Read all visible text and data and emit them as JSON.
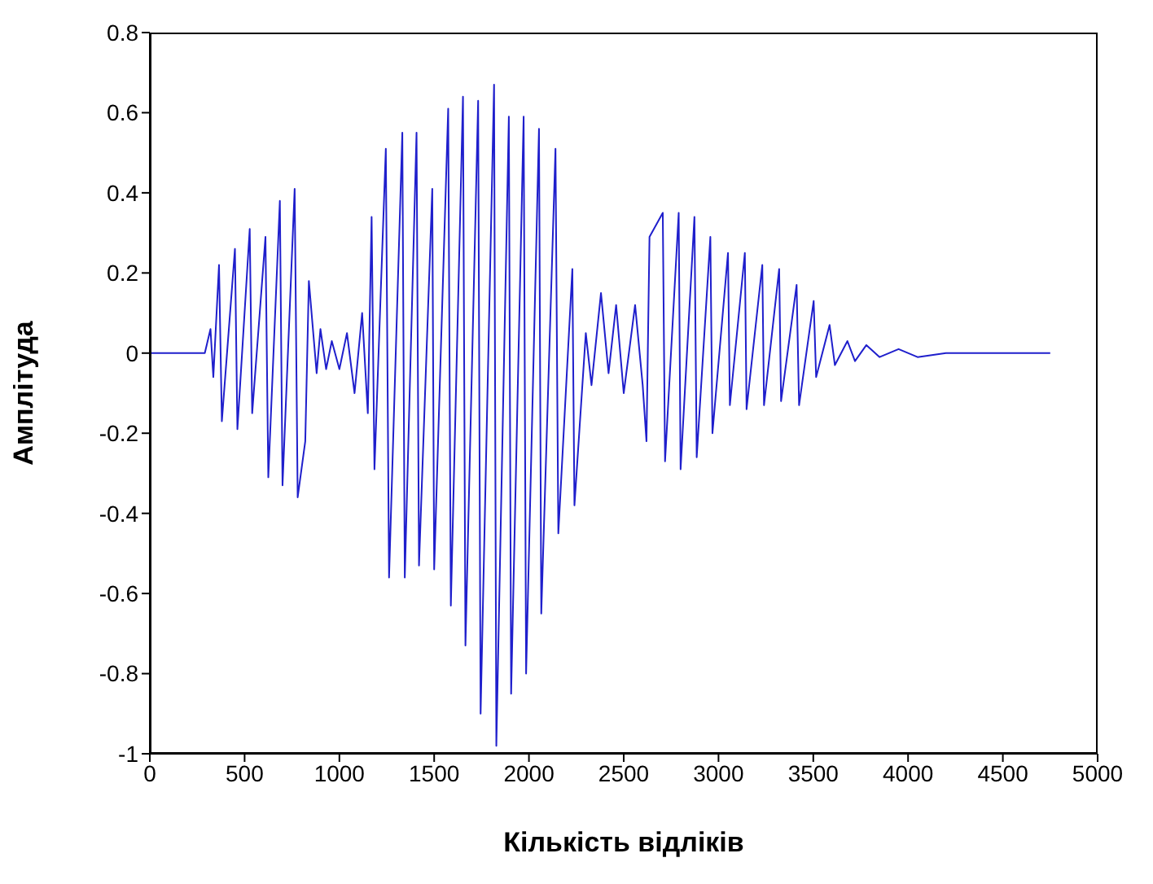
{
  "chart_data": {
    "type": "line",
    "xlabel": "Кількість відліків",
    "ylabel": "Амплітуда",
    "xlim": [
      0,
      5000
    ],
    "xticks": [
      0,
      500,
      1000,
      1500,
      2000,
      2500,
      3000,
      3500,
      4000,
      4500,
      5000
    ],
    "ylim": [
      -1,
      0.8
    ],
    "yticks": [
      -1,
      -0.8,
      -0.6,
      -0.4,
      -0.2,
      0,
      0.2,
      0.4,
      0.6,
      0.8
    ],
    "grid": false,
    "legend": false,
    "marker": "none",
    "line_style": "solid",
    "series": [
      {
        "color": "#1f1fcc",
        "x": [
          0,
          290,
          320,
          335,
          365,
          380,
          449,
          462,
          527,
          540,
          610,
          625,
          686,
          700,
          764,
          780,
          820,
          839,
          880,
          900,
          930,
          960,
          1000,
          1040,
          1080,
          1120,
          1150,
          1170,
          1185,
          1245,
          1262,
          1332,
          1345,
          1407,
          1420,
          1490,
          1500,
          1574,
          1588,
          1652,
          1665,
          1732,
          1745,
          1816,
          1828,
          1894,
          1906,
          1972,
          1985,
          2053,
          2065,
          2140,
          2155,
          2229,
          2240,
          2300,
          2330,
          2380,
          2420,
          2460,
          2500,
          2560,
          2600,
          2620,
          2636,
          2706,
          2718,
          2790,
          2800,
          2873,
          2885,
          2957,
          2968,
          3050,
          3060,
          3139,
          3148,
          3231,
          3240,
          3320,
          3330,
          3412,
          3425,
          3502,
          3515,
          3586,
          3614,
          3680,
          3720,
          3780,
          3850,
          3950,
          4050,
          4200,
          4750
        ],
        "values": [
          0,
          0,
          0.06,
          -0.06,
          0.22,
          -0.17,
          0.26,
          -0.19,
          0.31,
          -0.15,
          0.29,
          -0.31,
          0.38,
          -0.33,
          0.41,
          -0.36,
          -0.22,
          0.18,
          -0.05,
          0.06,
          -0.04,
          0.03,
          -0.04,
          0.05,
          -0.1,
          0.1,
          -0.15,
          0.34,
          -0.29,
          0.51,
          -0.56,
          0.55,
          -0.56,
          0.55,
          -0.53,
          0.41,
          -0.54,
          0.61,
          -0.63,
          0.64,
          -0.73,
          0.63,
          -0.9,
          0.67,
          -0.98,
          0.59,
          -0.85,
          0.59,
          -0.8,
          0.56,
          -0.65,
          0.51,
          -0.45,
          0.21,
          -0.38,
          0.05,
          -0.08,
          0.15,
          -0.05,
          0.12,
          -0.1,
          0.12,
          -0.08,
          -0.22,
          0.29,
          0.35,
          -0.27,
          0.35,
          -0.29,
          0.34,
          -0.26,
          0.29,
          -0.2,
          0.25,
          -0.13,
          0.25,
          -0.14,
          0.22,
          -0.13,
          0.21,
          -0.12,
          0.17,
          -0.13,
          0.13,
          -0.06,
          0.07,
          -0.03,
          0.03,
          -0.02,
          0.02,
          -0.01,
          0.01,
          -0.01,
          0,
          0
        ]
      }
    ]
  }
}
